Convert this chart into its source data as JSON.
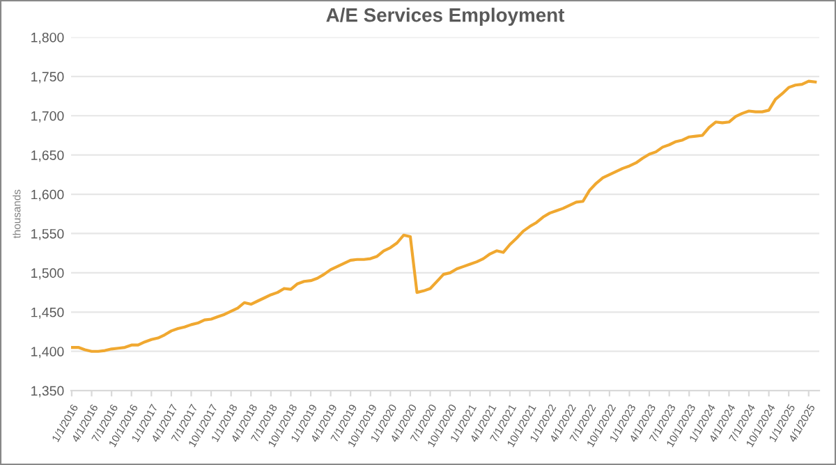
{
  "chart_data": {
    "type": "line",
    "title": "A/E Services Employment",
    "ylabel": "thousands",
    "categories": [
      "1/1/2016",
      null,
      null,
      "4/1/2016",
      null,
      null,
      "7/1/2016",
      null,
      null,
      "10/1/2016",
      null,
      null,
      "1/1/2017",
      null,
      null,
      "4/1/2017",
      null,
      null,
      "7/1/2017",
      null,
      null,
      "10/1/2017",
      null,
      null,
      "1/1/2018",
      null,
      null,
      "4/1/2018",
      null,
      null,
      "7/1/2018",
      null,
      null,
      "10/1/2018",
      null,
      null,
      "1/1/2019",
      null,
      null,
      "4/1/2019",
      null,
      null,
      "7/1/2019",
      null,
      null,
      "10/1/2019",
      null,
      null,
      "1/1/2020",
      null,
      null,
      "4/1/2020",
      null,
      null,
      "7/1/2020",
      null,
      null,
      "10/1/2020",
      null,
      null,
      "1/1/2021",
      null,
      null,
      "4/1/2021",
      null,
      null,
      "7/1/2021",
      null,
      null,
      "10/1/2021",
      null,
      null,
      "1/1/2022",
      null,
      null,
      "4/1/2022",
      null,
      null,
      "7/1/2022",
      null,
      null,
      "10/1/2022",
      null,
      null,
      "1/1/2023",
      null,
      null,
      "4/1/2023",
      null,
      null,
      "7/1/2023",
      null,
      null,
      "10/1/2023",
      null,
      null,
      "1/1/2024",
      null,
      null,
      "4/1/2024",
      null,
      null,
      "7/1/2024",
      null,
      null,
      "10/1/2024",
      null,
      null,
      "1/1/2025",
      null,
      null,
      "4/1/2025",
      null
    ],
    "series": [
      {
        "color": "#f0a830",
        "values": [
          1405,
          1405,
          1402,
          1400,
          1400,
          1401,
          1403,
          1404,
          1405,
          1408,
          1408,
          1412,
          1415,
          1417,
          1421,
          1426,
          1429,
          1431,
          1434,
          1436,
          1440,
          1441,
          1444,
          1447,
          1451,
          1455,
          1462,
          1460,
          1464,
          1468,
          1472,
          1475,
          1480,
          1479,
          1486,
          1489,
          1490,
          1493,
          1498,
          1504,
          1508,
          1512,
          1516,
          1517,
          1517,
          1518,
          1521,
          1528,
          1532,
          1538,
          1548,
          1546,
          1475,
          1477,
          1480,
          1489,
          1498,
          1500,
          1505,
          1508,
          1511,
          1514,
          1518,
          1524,
          1528,
          1526,
          1536,
          1544,
          1553,
          1559,
          1564,
          1571,
          1576,
          1579,
          1582,
          1586,
          1590,
          1591,
          1605,
          1614,
          1621,
          1625,
          1629,
          1633,
          1636,
          1640,
          1646,
          1651,
          1654,
          1660,
          1663,
          1667,
          1669,
          1673,
          1674,
          1675,
          1685,
          1692,
          1691,
          1692,
          1699,
          1703,
          1706,
          1705,
          1705,
          1707,
          1721,
          1728,
          1736,
          1739,
          1740,
          1744,
          1743
        ]
      }
    ],
    "ylim": [
      1350,
      1800
    ],
    "yticks": [
      {
        "value": 1350,
        "label": "1,350"
      },
      {
        "value": 1400,
        "label": "1,400"
      },
      {
        "value": 1450,
        "label": "1,450"
      },
      {
        "value": 1500,
        "label": "1,500"
      },
      {
        "value": 1550,
        "label": "1,550"
      },
      {
        "value": 1600,
        "label": "1,600"
      },
      {
        "value": 1650,
        "label": "1,650"
      },
      {
        "value": 1700,
        "label": "1,700"
      },
      {
        "value": 1750,
        "label": "1,750"
      },
      {
        "value": 1800,
        "label": "1,800"
      }
    ],
    "grid": "y",
    "marker": "none",
    "line_style": "solid"
  }
}
